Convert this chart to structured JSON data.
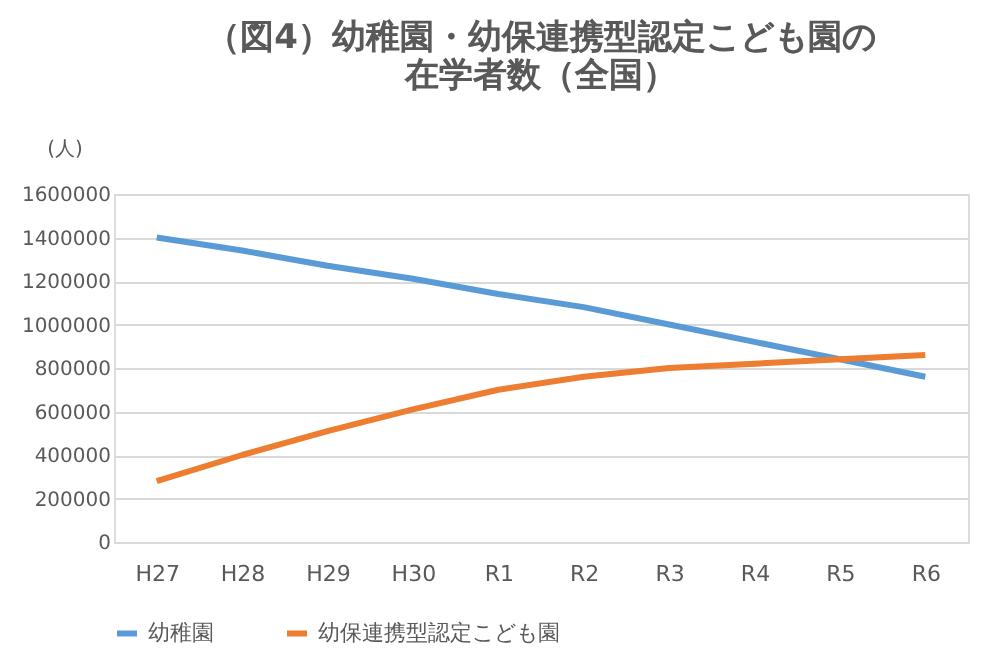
{
  "chart_data": {
    "type": "line",
    "title": [
      "（図4）幼稚園・幼保連携型認定こども園の",
      "在学者数（全国）"
    ],
    "ylabel": "(人)",
    "categories": [
      "H27",
      "H28",
      "H29",
      "H30",
      "R1",
      "R2",
      "R3",
      "R4",
      "R5",
      "R6"
    ],
    "series": [
      {
        "name": "幼稚園",
        "color": "#5b9bd5",
        "values": [
          1400000,
          1340000,
          1270000,
          1210000,
          1140000,
          1080000,
          1000000,
          920000,
          840000,
          760000
        ]
      },
      {
        "name": "幼保連携型認定こども園",
        "color": "#ed7d31",
        "values": [
          280000,
          400000,
          510000,
          610000,
          700000,
          760000,
          800000,
          820000,
          840000,
          860000
        ]
      }
    ],
    "ylim": [
      0,
      1600000
    ],
    "yticks": [
      0,
      200000,
      400000,
      600000,
      800000,
      1000000,
      1200000,
      1400000,
      1600000
    ],
    "grid": "y",
    "legend": "bottom",
    "marker": "none",
    "line_style": "solid"
  }
}
